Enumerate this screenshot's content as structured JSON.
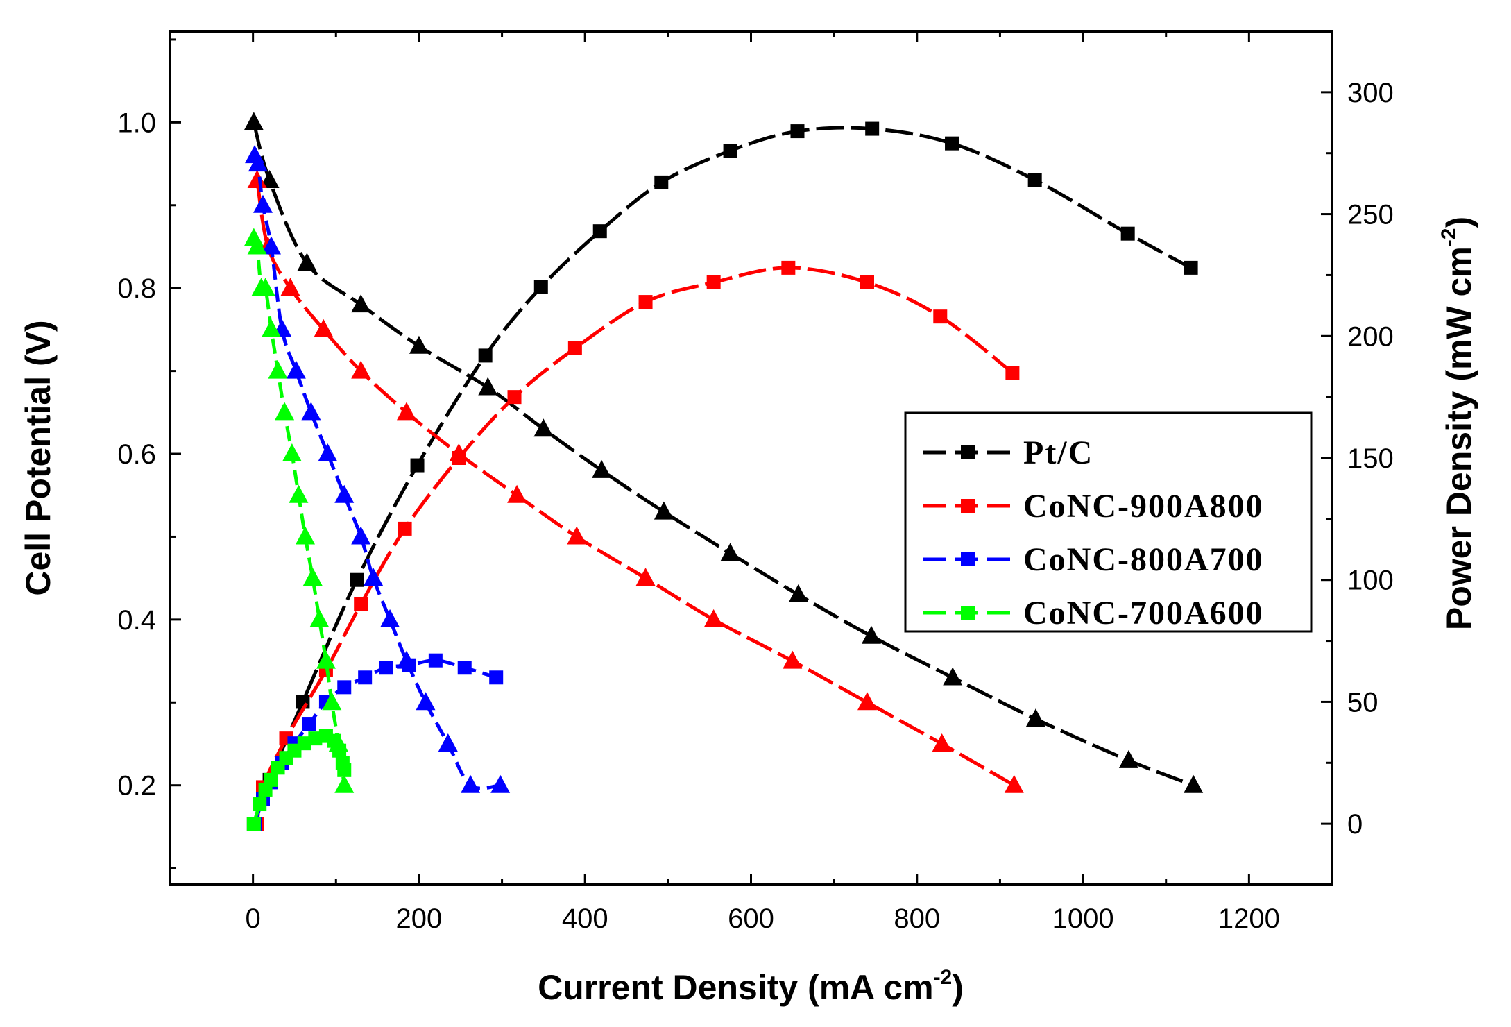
{
  "chart_data": {
    "type": "line",
    "title": "",
    "xlabel": "Current Density (mA cm",
    "xlabel_sup": "-2",
    "xlabel_tail": ")",
    "ylabel_left": "Cell Potential (V)",
    "ylabel_right": "Power Density (mW cm",
    "ylabel_right_sup": "-2",
    "ylabel_right_tail": ")",
    "xlim": [
      -100,
      1300
    ],
    "ylim_left": [
      0.08,
      1.11
    ],
    "ylim_right": [
      -25,
      325
    ],
    "x_ticks": [
      0,
      200,
      400,
      600,
      800,
      1000,
      1200
    ],
    "x_tick_labels": [
      "0",
      "200",
      "400",
      "600",
      "800",
      "1000",
      "1200"
    ],
    "y_left_ticks": [
      0.2,
      0.4,
      0.6,
      0.8,
      1.0
    ],
    "y_left_tick_labels": [
      "0.2",
      "0.4",
      "0.6",
      "0.8",
      "1.0"
    ],
    "y_right_ticks": [
      0,
      50,
      100,
      150,
      200,
      250,
      300
    ],
    "y_right_tick_labels": [
      "0",
      "50",
      "100",
      "150",
      "200",
      "250",
      "300"
    ],
    "legend_position": "center-right",
    "series": [
      {
        "name": "Pt/C",
        "color": "#000000",
        "polarization": {
          "x": [
            1,
            20,
            65,
            130,
            200,
            283,
            350,
            420,
            495,
            575,
            657,
            745,
            843,
            943,
            1055,
            1133
          ],
          "y": [
            1.0,
            0.93,
            0.83,
            0.78,
            0.73,
            0.68,
            0.63,
            0.58,
            0.53,
            0.48,
            0.43,
            0.38,
            0.33,
            0.28,
            0.23,
            0.2
          ]
        },
        "power": {
          "x": [
            1,
            20,
            60,
            125,
            198,
            280,
            347,
            418,
            492,
            575,
            656,
            746,
            842,
            942,
            1054,
            1130
          ],
          "y": [
            0,
            18,
            50,
            100,
            147,
            192,
            220,
            243,
            263,
            276,
            284,
            285,
            279,
            264,
            242,
            228
          ]
        }
      },
      {
        "name": "CoNC-900A800",
        "color": "#ff0000",
        "polarization": {
          "x": [
            5,
            18,
            45,
            85,
            130,
            185,
            248,
            318,
            390,
            473,
            555,
            650,
            740,
            830,
            917
          ],
          "y": [
            0.93,
            0.85,
            0.8,
            0.75,
            0.7,
            0.65,
            0.6,
            0.55,
            0.5,
            0.45,
            0.4,
            0.35,
            0.3,
            0.25,
            0.2
          ]
        },
        "power": {
          "x": [
            5,
            12,
            40,
            88,
            130,
            183,
            248,
            315,
            388,
            473,
            555,
            645,
            740,
            828,
            915
          ],
          "y": [
            0,
            15,
            35,
            63,
            90,
            121,
            150,
            175,
            195,
            214,
            222,
            228,
            222,
            208,
            185
          ]
        }
      },
      {
        "name": "CoNC-800A700",
        "color": "#0000ff",
        "polarization": {
          "x": [
            2,
            6,
            12,
            22,
            35,
            52,
            70,
            90,
            110,
            130,
            145,
            165,
            185,
            208,
            235,
            262,
            298
          ],
          "y": [
            0.96,
            0.95,
            0.9,
            0.85,
            0.75,
            0.7,
            0.65,
            0.6,
            0.55,
            0.5,
            0.45,
            0.4,
            0.35,
            0.3,
            0.25,
            0.2,
            0.2
          ]
        },
        "power": {
          "x": [
            2,
            12,
            22,
            35,
            50,
            68,
            88,
            110,
            135,
            160,
            188,
            220,
            255,
            293
          ],
          "y": [
            0,
            10,
            17,
            25,
            33,
            41,
            50,
            56,
            60,
            64,
            65,
            67,
            64,
            60
          ]
        }
      },
      {
        "name": "CoNC-700A600",
        "color": "#00ff00",
        "polarization": {
          "x": [
            1,
            5,
            10,
            15,
            22,
            30,
            38,
            47,
            55,
            63,
            72,
            80,
            88,
            95,
            103,
            110
          ],
          "y": [
            0.86,
            0.85,
            0.8,
            0.8,
            0.75,
            0.7,
            0.65,
            0.6,
            0.55,
            0.5,
            0.45,
            0.4,
            0.35,
            0.3,
            0.25,
            0.2
          ]
        },
        "power": {
          "x": [
            1,
            8,
            15,
            22,
            30,
            40,
            50,
            62,
            75,
            88,
            98,
            104,
            108,
            110
          ],
          "y": [
            0,
            8,
            14,
            18,
            23,
            27,
            30,
            33,
            35,
            36,
            34,
            30,
            25,
            22
          ]
        }
      }
    ]
  }
}
